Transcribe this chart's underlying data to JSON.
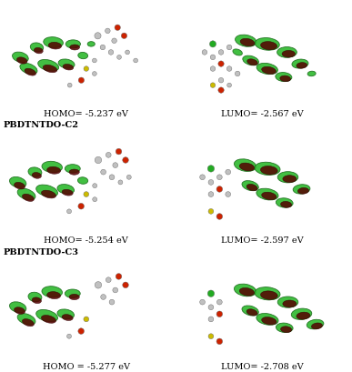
{
  "background_color": "#ffffff",
  "figure_width": 3.87,
  "figure_height": 4.1,
  "dpi": 100,
  "rows": [
    {
      "section_label": "",
      "homo_label": "HOMO= -5.237 eV",
      "lumo_label": "LUMO= -2.567 eV"
    },
    {
      "section_label": "PBDTNTDO-C2",
      "homo_label": "HOMO= -5.254 eV",
      "lumo_label": "LUMO= -2.597 eV"
    },
    {
      "section_label": "PBDTNTDO-C3",
      "homo_label": "HOMO = -5.277 eV",
      "lumo_label": "LUMO= -2.708 eV"
    }
  ],
  "label_fontsize": 7.0,
  "section_fontsize": 7.0,
  "homo_panels": [
    {
      "green_lobes": [
        [
          0.5,
          5.2,
          1.0,
          0.6,
          -15
        ],
        [
          1.5,
          5.8,
          0.8,
          0.55,
          -10
        ],
        [
          2.5,
          6.1,
          1.2,
          0.65,
          -5
        ],
        [
          3.7,
          6.0,
          0.9,
          0.5,
          0
        ],
        [
          1.0,
          4.5,
          1.1,
          0.6,
          -20
        ],
        [
          2.2,
          4.7,
          1.3,
          0.65,
          -15
        ],
        [
          3.3,
          4.8,
          1.0,
          0.55,
          -10
        ],
        [
          4.3,
          5.3,
          0.6,
          0.4,
          -5
        ],
        [
          4.8,
          6.0,
          0.45,
          0.3,
          0
        ]
      ],
      "dark_lobes": [
        [
          0.6,
          5.0,
          0.65,
          0.38,
          -15
        ],
        [
          1.6,
          5.6,
          0.55,
          0.35,
          -10
        ],
        [
          2.6,
          5.9,
          0.8,
          0.42,
          -5
        ],
        [
          3.8,
          5.8,
          0.6,
          0.33,
          0
        ],
        [
          1.1,
          4.3,
          0.72,
          0.38,
          -20
        ],
        [
          2.3,
          4.5,
          0.88,
          0.42,
          -15
        ],
        [
          3.4,
          4.6,
          0.65,
          0.35,
          -10
        ]
      ],
      "atoms": [
        [
          5.2,
          6.5,
          0.18,
          "gray"
        ],
        [
          5.8,
          6.8,
          0.14,
          "gray"
        ],
        [
          6.4,
          7.0,
          0.16,
          "red"
        ],
        [
          6.2,
          6.2,
          0.14,
          "gray"
        ],
        [
          6.8,
          6.5,
          0.16,
          "red"
        ],
        [
          5.5,
          5.8,
          0.14,
          "gray"
        ],
        [
          6.0,
          5.5,
          0.14,
          "gray"
        ],
        [
          6.5,
          5.2,
          0.12,
          "gray"
        ],
        [
          7.0,
          5.5,
          0.12,
          "gray"
        ],
        [
          7.5,
          5.0,
          0.12,
          "gray"
        ],
        [
          5.0,
          5.0,
          0.12,
          "gray"
        ],
        [
          4.5,
          4.5,
          0.14,
          "yellow"
        ],
        [
          5.0,
          4.2,
          0.12,
          "gray"
        ],
        [
          4.2,
          3.8,
          0.16,
          "red"
        ],
        [
          3.5,
          3.5,
          0.12,
          "gray"
        ]
      ]
    },
    {
      "green_lobes": [
        [
          0.5,
          5.2,
          1.0,
          0.6,
          -15
        ],
        [
          1.5,
          5.8,
          0.8,
          0.55,
          -10
        ],
        [
          2.5,
          6.1,
          1.2,
          0.65,
          -5
        ],
        [
          3.7,
          6.0,
          0.9,
          0.5,
          0
        ],
        [
          1.0,
          4.5,
          1.1,
          0.6,
          -20
        ],
        [
          2.2,
          4.7,
          1.3,
          0.65,
          -15
        ],
        [
          3.3,
          4.8,
          1.0,
          0.55,
          -10
        ],
        [
          4.3,
          5.3,
          0.6,
          0.4,
          -5
        ]
      ],
      "dark_lobes": [
        [
          0.6,
          5.0,
          0.65,
          0.38,
          -15
        ],
        [
          1.6,
          5.6,
          0.55,
          0.35,
          -10
        ],
        [
          2.6,
          5.9,
          0.8,
          0.42,
          -5
        ],
        [
          3.8,
          5.8,
          0.6,
          0.33,
          0
        ],
        [
          1.1,
          4.3,
          0.72,
          0.38,
          -20
        ],
        [
          2.3,
          4.5,
          0.88,
          0.42,
          -15
        ],
        [
          3.4,
          4.6,
          0.65,
          0.35,
          -10
        ]
      ],
      "atoms": [
        [
          5.2,
          6.5,
          0.18,
          "gray"
        ],
        [
          5.8,
          6.8,
          0.14,
          "gray"
        ],
        [
          6.4,
          7.0,
          0.16,
          "red"
        ],
        [
          6.2,
          6.2,
          0.14,
          "gray"
        ],
        [
          6.8,
          6.5,
          0.16,
          "red"
        ],
        [
          5.5,
          5.8,
          0.14,
          "gray"
        ],
        [
          6.0,
          5.5,
          0.14,
          "gray"
        ],
        [
          6.5,
          5.2,
          0.12,
          "gray"
        ],
        [
          7.0,
          5.5,
          0.12,
          "gray"
        ],
        [
          5.0,
          5.0,
          0.12,
          "gray"
        ],
        [
          4.5,
          4.5,
          0.14,
          "yellow"
        ],
        [
          5.0,
          4.2,
          0.12,
          "gray"
        ],
        [
          4.2,
          3.8,
          0.16,
          "red"
        ],
        [
          3.5,
          3.5,
          0.12,
          "gray"
        ]
      ]
    },
    {
      "green_lobes": [
        [
          0.5,
          5.2,
          1.0,
          0.6,
          -15
        ],
        [
          1.5,
          5.8,
          0.8,
          0.55,
          -10
        ],
        [
          2.5,
          6.1,
          1.2,
          0.65,
          -5
        ],
        [
          3.7,
          6.0,
          0.9,
          0.5,
          0
        ],
        [
          1.0,
          4.5,
          1.1,
          0.6,
          -20
        ],
        [
          2.2,
          4.7,
          1.3,
          0.65,
          -15
        ],
        [
          3.3,
          4.8,
          1.0,
          0.55,
          -10
        ]
      ],
      "dark_lobes": [
        [
          0.6,
          5.0,
          0.65,
          0.38,
          -15
        ],
        [
          1.6,
          5.6,
          0.55,
          0.35,
          -10
        ],
        [
          2.6,
          5.9,
          0.8,
          0.42,
          -5
        ],
        [
          3.8,
          5.8,
          0.6,
          0.33,
          0
        ],
        [
          1.1,
          4.3,
          0.72,
          0.38,
          -20
        ],
        [
          2.3,
          4.5,
          0.88,
          0.42,
          -15
        ],
        [
          3.4,
          4.6,
          0.65,
          0.35,
          -10
        ]
      ],
      "atoms": [
        [
          5.2,
          6.5,
          0.18,
          "gray"
        ],
        [
          5.8,
          6.8,
          0.14,
          "gray"
        ],
        [
          6.4,
          7.0,
          0.16,
          "red"
        ],
        [
          6.2,
          6.2,
          0.14,
          "gray"
        ],
        [
          6.8,
          6.5,
          0.16,
          "red"
        ],
        [
          5.5,
          5.8,
          0.14,
          "gray"
        ],
        [
          6.0,
          5.5,
          0.14,
          "gray"
        ],
        [
          4.5,
          4.5,
          0.14,
          "yellow"
        ],
        [
          4.2,
          3.8,
          0.16,
          "red"
        ],
        [
          3.5,
          3.5,
          0.12,
          "gray"
        ]
      ]
    }
  ],
  "lumo_panels": [
    {
      "green_lobes": [
        [
          3.5,
          6.2,
          1.3,
          0.7,
          -10
        ],
        [
          4.8,
          6.0,
          1.5,
          0.75,
          -5
        ],
        [
          6.0,
          5.5,
          1.2,
          0.65,
          0
        ],
        [
          6.8,
          4.8,
          1.0,
          0.55,
          5
        ],
        [
          3.8,
          5.0,
          1.0,
          0.55,
          -15
        ],
        [
          4.8,
          4.5,
          1.3,
          0.65,
          -10
        ],
        [
          5.8,
          4.0,
          1.0,
          0.55,
          -5
        ],
        [
          3.0,
          5.5,
          0.6,
          0.35,
          -20
        ],
        [
          7.5,
          4.2,
          0.5,
          0.3,
          5
        ]
      ],
      "dark_lobes": [
        [
          3.6,
          6.1,
          0.88,
          0.45,
          -10
        ],
        [
          4.9,
          5.9,
          1.0,
          0.5,
          -5
        ],
        [
          6.1,
          5.4,
          0.8,
          0.42,
          0
        ],
        [
          6.9,
          4.7,
          0.65,
          0.36,
          5
        ],
        [
          3.9,
          4.9,
          0.65,
          0.36,
          -15
        ],
        [
          4.9,
          4.4,
          0.88,
          0.43,
          -10
        ],
        [
          5.9,
          3.9,
          0.65,
          0.36,
          -5
        ]
      ],
      "atoms": [
        [
          1.5,
          6.0,
          0.18,
          "green"
        ],
        [
          1.0,
          5.5,
          0.14,
          "gray"
        ],
        [
          1.5,
          5.2,
          0.14,
          "gray"
        ],
        [
          2.0,
          5.5,
          0.14,
          "gray"
        ],
        [
          2.5,
          5.8,
          0.14,
          "gray"
        ],
        [
          2.0,
          4.8,
          0.16,
          "red"
        ],
        [
          1.5,
          4.5,
          0.14,
          "gray"
        ],
        [
          2.5,
          4.5,
          0.14,
          "gray"
        ],
        [
          3.0,
          4.2,
          0.14,
          "gray"
        ],
        [
          2.0,
          3.8,
          0.14,
          "gray"
        ],
        [
          1.5,
          3.5,
          0.14,
          "yellow"
        ],
        [
          2.5,
          3.5,
          0.12,
          "gray"
        ],
        [
          2.0,
          3.2,
          0.16,
          "red"
        ]
      ]
    },
    {
      "green_lobes": [
        [
          3.5,
          6.2,
          1.3,
          0.7,
          -10
        ],
        [
          4.8,
          6.0,
          1.5,
          0.75,
          -5
        ],
        [
          6.0,
          5.5,
          1.2,
          0.65,
          0
        ],
        [
          6.8,
          4.8,
          1.0,
          0.55,
          5
        ],
        [
          3.8,
          5.0,
          1.0,
          0.55,
          -15
        ],
        [
          4.8,
          4.5,
          1.3,
          0.65,
          -10
        ],
        [
          5.8,
          4.0,
          1.0,
          0.55,
          -5
        ]
      ],
      "dark_lobes": [
        [
          3.6,
          6.1,
          0.88,
          0.45,
          -10
        ],
        [
          4.9,
          5.9,
          1.0,
          0.5,
          -5
        ],
        [
          6.1,
          5.4,
          0.8,
          0.42,
          0
        ],
        [
          6.9,
          4.7,
          0.65,
          0.36,
          5
        ],
        [
          3.9,
          4.9,
          0.65,
          0.36,
          -15
        ],
        [
          4.9,
          4.4,
          0.88,
          0.43,
          -10
        ],
        [
          5.9,
          3.9,
          0.65,
          0.36,
          -5
        ]
      ],
      "atoms": [
        [
          1.5,
          6.0,
          0.18,
          "green"
        ],
        [
          1.0,
          5.5,
          0.14,
          "gray"
        ],
        [
          1.5,
          5.2,
          0.14,
          "gray"
        ],
        [
          2.0,
          5.5,
          0.14,
          "gray"
        ],
        [
          2.5,
          5.8,
          0.14,
          "gray"
        ],
        [
          2.0,
          4.8,
          0.16,
          "red"
        ],
        [
          1.5,
          4.5,
          0.14,
          "gray"
        ],
        [
          2.5,
          4.5,
          0.14,
          "gray"
        ],
        [
          1.5,
          3.5,
          0.14,
          "yellow"
        ],
        [
          2.0,
          3.2,
          0.16,
          "red"
        ]
      ]
    },
    {
      "green_lobes": [
        [
          3.5,
          6.2,
          1.3,
          0.7,
          -10
        ],
        [
          4.8,
          6.0,
          1.5,
          0.75,
          -5
        ],
        [
          6.0,
          5.5,
          1.2,
          0.65,
          0
        ],
        [
          6.8,
          4.8,
          1.2,
          0.65,
          5
        ],
        [
          7.6,
          4.2,
          1.0,
          0.55,
          8
        ],
        [
          3.8,
          5.0,
          1.0,
          0.55,
          -15
        ],
        [
          4.8,
          4.5,
          1.3,
          0.65,
          -10
        ],
        [
          5.8,
          4.0,
          1.0,
          0.55,
          -5
        ]
      ],
      "dark_lobes": [
        [
          3.6,
          6.1,
          0.88,
          0.45,
          -10
        ],
        [
          4.9,
          5.9,
          1.0,
          0.5,
          -5
        ],
        [
          6.1,
          5.4,
          0.8,
          0.42,
          0
        ],
        [
          6.9,
          4.7,
          0.8,
          0.42,
          5
        ],
        [
          7.7,
          4.1,
          0.65,
          0.36,
          8
        ],
        [
          3.9,
          4.9,
          0.65,
          0.36,
          -15
        ],
        [
          4.9,
          4.4,
          0.88,
          0.43,
          -10
        ],
        [
          5.9,
          3.9,
          0.65,
          0.36,
          -5
        ]
      ],
      "atoms": [
        [
          1.5,
          6.0,
          0.18,
          "green"
        ],
        [
          1.0,
          5.5,
          0.14,
          "gray"
        ],
        [
          1.5,
          5.2,
          0.14,
          "gray"
        ],
        [
          2.0,
          5.5,
          0.14,
          "gray"
        ],
        [
          2.0,
          4.8,
          0.16,
          "red"
        ],
        [
          1.5,
          4.5,
          0.14,
          "gray"
        ],
        [
          1.5,
          3.5,
          0.14,
          "yellow"
        ],
        [
          2.0,
          3.2,
          0.16,
          "red"
        ]
      ]
    }
  ]
}
